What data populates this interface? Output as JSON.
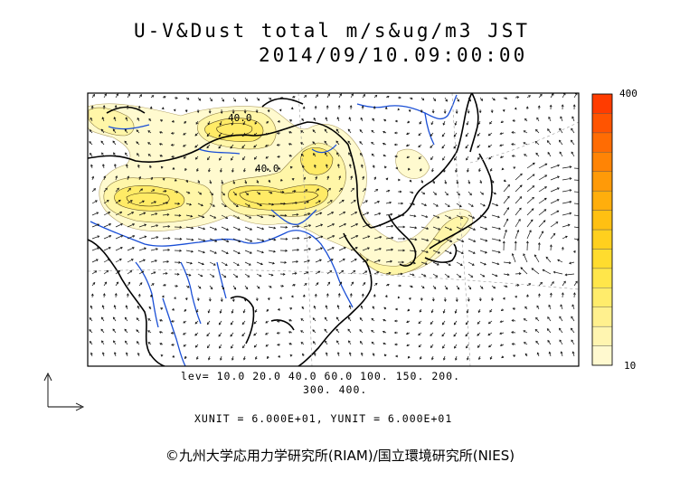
{
  "title": {
    "line1": "U-V&Dust total m/s&ug/m3 JST",
    "line2": "2014/09/10.09:00:00"
  },
  "map": {
    "contour_label_1": "40.0",
    "contour_label_2": "40.0"
  },
  "colorbar": {
    "max_label": "400",
    "min_label": "10",
    "colors": [
      "#fff9cf",
      "#fff5b0",
      "#fff08e",
      "#ffec6b",
      "#ffe64a",
      "#ffdc2e",
      "#ffd01e",
      "#ffc012",
      "#ffae0c",
      "#ff9a08",
      "#ff8405",
      "#ff6c03",
      "#ff5401",
      "#ff3c00"
    ]
  },
  "legend": {
    "levels_line1": "lev= 10.0 20.0 40.0 60.0 100. 150. 200.",
    "levels_line2": "300. 400.",
    "units_line": "XUNIT = 6.000E+01, YUNIT = 6.000E+01"
  },
  "footer": {
    "copyright": "©九州大学応用力学研究所(RIAM)/国立環境研究所(NIES)"
  }
}
